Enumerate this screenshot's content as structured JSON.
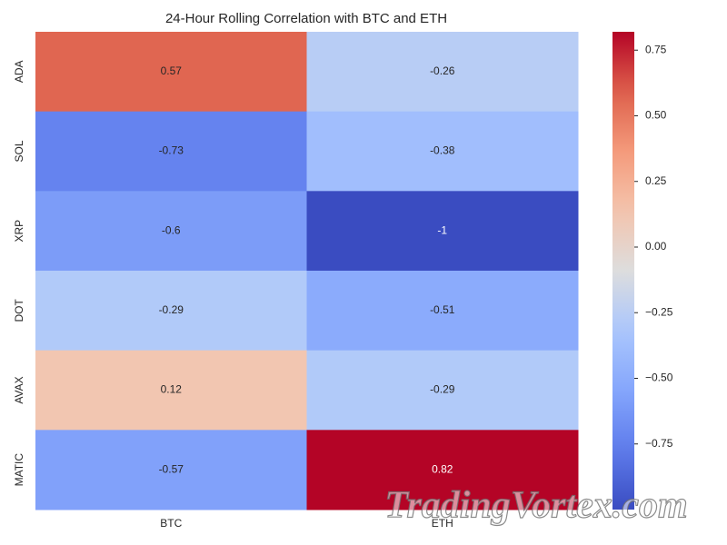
{
  "chart_data": {
    "type": "heatmap",
    "title": "24-Hour Rolling Correlation with BTC and ETH",
    "x_categories": [
      "BTC",
      "ETH"
    ],
    "y_categories": [
      "ADA",
      "SOL",
      "XRP",
      "DOT",
      "AVAX",
      "MATIC"
    ],
    "values": [
      [
        0.57,
        -0.26
      ],
      [
        -0.73,
        -0.38
      ],
      [
        -0.6,
        -1
      ],
      [
        -0.29,
        -0.51
      ],
      [
        0.12,
        -0.29
      ],
      [
        -0.57,
        0.82
      ]
    ],
    "colormap": "coolwarm",
    "clim": [
      -1,
      0.82
    ],
    "cticks": [
      {
        "value": 0.75,
        "label": "0.75"
      },
      {
        "value": 0.5,
        "label": "0.50"
      },
      {
        "value": 0.25,
        "label": "0.25"
      },
      {
        "value": 0,
        "label": "0.00"
      },
      {
        "value": -0.25,
        "label": "−0.25"
      },
      {
        "value": -0.5,
        "label": "−0.50"
      },
      {
        "value": -0.75,
        "label": "−0.75"
      }
    ],
    "watermark": "TradingVortex.com"
  }
}
